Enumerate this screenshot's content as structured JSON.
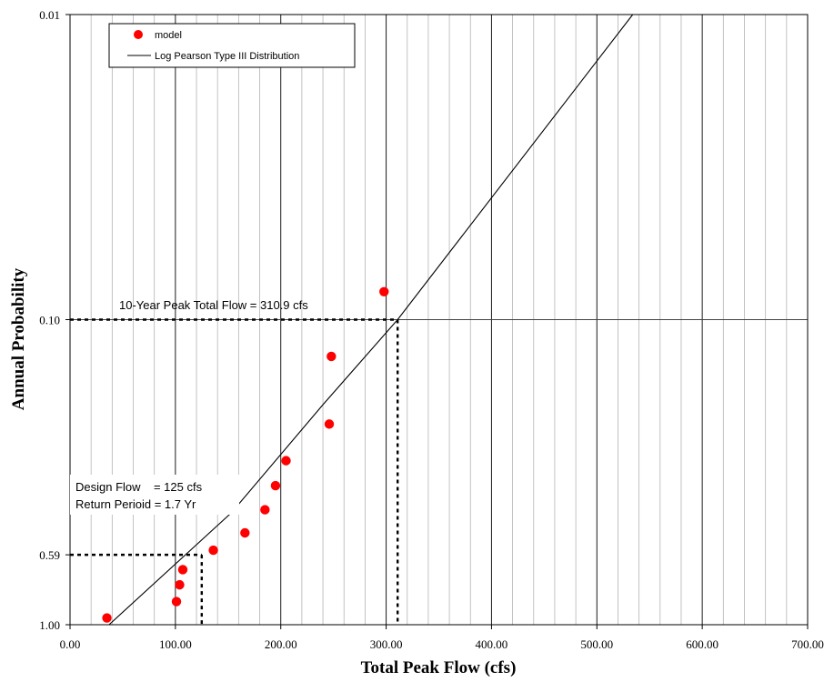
{
  "chart_data": {
    "type": "scatter",
    "xlabel": "Total Peak Flow (cfs)",
    "ylabel": "Annual Probability",
    "xlim": [
      0,
      700
    ],
    "ylim": [
      1.0,
      0.01
    ],
    "y_scale": "log",
    "x_ticks": [
      "0.00",
      "100.00",
      "200.00",
      "300.00",
      "400.00",
      "500.00",
      "600.00",
      "700.00"
    ],
    "y_ticks": [
      {
        "value": 0.01,
        "label": "0.01"
      },
      {
        "value": 0.1,
        "label": "0.10"
      },
      {
        "value": 0.59,
        "label": "0.59"
      },
      {
        "value": 1.0,
        "label": "1.00"
      }
    ],
    "grid": true,
    "legend_position": "top-left",
    "legend": [
      {
        "label": "model",
        "kind": "marker",
        "color": "#ff0000"
      },
      {
        "label": "Log Pearson Type III Distribution",
        "kind": "line",
        "color": "#000000"
      }
    ],
    "series": [
      {
        "name": "model",
        "kind": "scatter",
        "color": "#ff0000",
        "points": [
          {
            "x": 35,
            "y": 0.95
          },
          {
            "x": 101,
            "y": 0.84
          },
          {
            "x": 104,
            "y": 0.74
          },
          {
            "x": 107,
            "y": 0.66
          },
          {
            "x": 136,
            "y": 0.57
          },
          {
            "x": 166,
            "y": 0.5
          },
          {
            "x": 185,
            "y": 0.42
          },
          {
            "x": 195,
            "y": 0.35
          },
          {
            "x": 205,
            "y": 0.29
          },
          {
            "x": 246,
            "y": 0.22
          },
          {
            "x": 248,
            "y": 0.132
          },
          {
            "x": 298,
            "y": 0.081
          }
        ]
      },
      {
        "name": "Log Pearson Type III Distribution",
        "kind": "line",
        "color": "#000000",
        "points": [
          {
            "x": 37,
            "y": 1.0
          },
          {
            "x": 153,
            "y": 0.43
          },
          {
            "x": 240,
            "y": 0.19
          },
          {
            "x": 310.9,
            "y": 0.1
          },
          {
            "x": 534,
            "y": 0.01
          }
        ]
      }
    ],
    "annotations": {
      "ten_year": {
        "text": "10-Year Peak Total Flow = 310.9 cfs",
        "x": 310.9,
        "y": 0.1
      },
      "design_line1": "Design Flow    = 125 cfs",
      "design_line2": "Return Perioid = 1.7 Yr",
      "design": {
        "x": 125,
        "y": 0.59
      }
    }
  }
}
